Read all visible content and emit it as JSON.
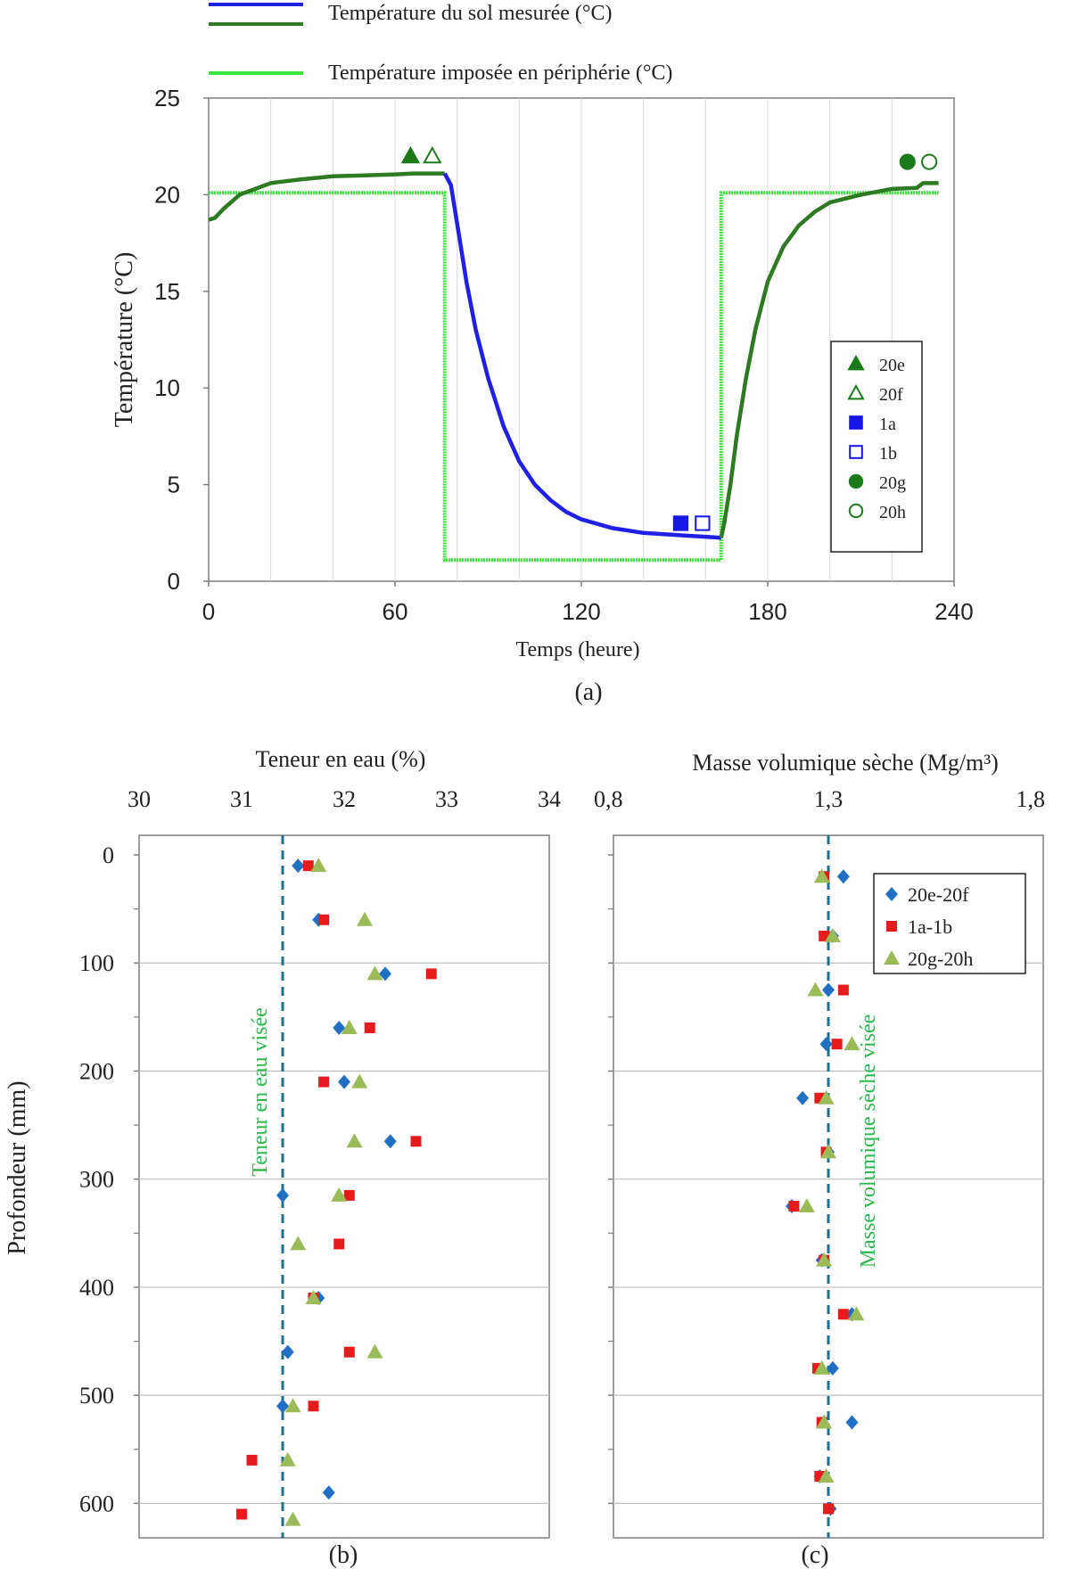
{
  "colors": {
    "measured_blue": "#1f1fe6",
    "measured_green": "#2e7a23",
    "imposed": "#39e639",
    "series_20ef": "#1f6fc4",
    "series_1ab": "#e61c1c",
    "series_20gh": "#9bbb59",
    "target_line": "#1f6f8f",
    "target_text": "#2db84b",
    "marker_green": "#1a7a1a",
    "marker_blue": "#1616e6"
  },
  "chart_data": [
    {
      "id": "a",
      "type": "line",
      "caption": "(a)",
      "xlabel": "Temps (heure)",
      "ylabel": "Température (°C)",
      "xlim": [
        0,
        240
      ],
      "ylim": [
        0,
        25
      ],
      "xticks": [
        0,
        60,
        120,
        180,
        240
      ],
      "yticks": [
        0,
        5,
        10,
        15,
        20,
        25
      ],
      "vgrid": [
        20,
        40,
        60,
        80,
        100,
        120,
        140,
        160,
        180,
        200,
        220
      ],
      "legend_top": [
        {
          "label": "Température du sol mesurée (°C)"
        },
        {
          "label": "Température imposée en périphérie (°C)"
        }
      ],
      "measured_warm1": {
        "x": [
          0,
          2,
          5,
          10,
          15,
          20,
          25,
          30,
          40,
          50,
          60,
          66,
          70,
          76
        ],
        "y": [
          18.7,
          18.8,
          19.3,
          20.0,
          20.3,
          20.6,
          20.7,
          20.8,
          20.95,
          21.0,
          21.05,
          21.1,
          21.1,
          21.1
        ]
      },
      "measured_cold": {
        "x": [
          76,
          78,
          80,
          83,
          86,
          90,
          95,
          100,
          105,
          110,
          115,
          120,
          130,
          140,
          150,
          160,
          165
        ],
        "y": [
          21.1,
          20.5,
          18.5,
          15.5,
          13.0,
          10.5,
          8.0,
          6.2,
          5.0,
          4.2,
          3.6,
          3.2,
          2.75,
          2.5,
          2.4,
          2.3,
          2.25
        ]
      },
      "measured_warm2": {
        "x": [
          165,
          166,
          168,
          170,
          173,
          176,
          180,
          185,
          190,
          195,
          200,
          210,
          220,
          228,
          230,
          235
        ],
        "y": [
          2.25,
          3.0,
          5.0,
          7.5,
          10.5,
          13.0,
          15.5,
          17.3,
          18.4,
          19.1,
          19.6,
          20.0,
          20.3,
          20.35,
          20.6,
          20.6
        ]
      },
      "imposed": {
        "x": [
          0,
          76,
          76,
          165,
          165,
          235
        ],
        "y": [
          20.1,
          20.1,
          1.1,
          1.1,
          20.1,
          20.1
        ]
      },
      "markers": [
        {
          "label": "20e",
          "shape": "triangle",
          "filled": true,
          "color": "green",
          "x": 65,
          "y": 22.0
        },
        {
          "label": "20f",
          "shape": "triangle",
          "filled": false,
          "color": "green",
          "x": 72,
          "y": 22.0
        },
        {
          "label": "1a",
          "shape": "square",
          "filled": true,
          "color": "blue",
          "x": 152,
          "y": 3.0
        },
        {
          "label": "1b",
          "shape": "square",
          "filled": false,
          "color": "blue",
          "x": 159,
          "y": 3.0
        },
        {
          "label": "20g",
          "shape": "circle",
          "filled": true,
          "color": "green",
          "x": 225,
          "y": 21.7
        },
        {
          "label": "20h",
          "shape": "circle",
          "filled": false,
          "color": "green",
          "x": 232,
          "y": 21.7
        }
      ]
    },
    {
      "id": "b",
      "type": "scatter",
      "caption": "(b)",
      "xlabel": "Teneur en eau (%)",
      "ylabel": "Profondeur (mm)",
      "xlim": [
        30,
        34
      ],
      "ylim": [
        0,
        650
      ],
      "xtick_labels": [
        "30",
        "31",
        "32",
        "33",
        "34"
      ],
      "xticks": [
        30,
        31,
        32,
        33,
        34
      ],
      "yticks": [
        0,
        100,
        200,
        300,
        400,
        500,
        600
      ],
      "target": {
        "value": 31.4,
        "label": "Teneur en eau visée"
      },
      "series": [
        {
          "name": "20e-20f",
          "shape": "diamond",
          "points": [
            [
              31.55,
              10
            ],
            [
              31.75,
              60
            ],
            [
              32.4,
              110
            ],
            [
              31.95,
              160
            ],
            [
              32.0,
              210
            ],
            [
              32.45,
              265
            ],
            [
              31.4,
              315
            ],
            [
              31.75,
              410
            ],
            [
              31.45,
              460
            ],
            [
              31.4,
              510
            ],
            [
              31.85,
              590
            ]
          ]
        },
        {
          "name": "1a-1b",
          "shape": "square",
          "points": [
            [
              31.65,
              10
            ],
            [
              31.8,
              60
            ],
            [
              32.85,
              110
            ],
            [
              32.25,
              160
            ],
            [
              31.8,
              210
            ],
            [
              32.7,
              265
            ],
            [
              32.05,
              315
            ],
            [
              31.95,
              360
            ],
            [
              31.7,
              410
            ],
            [
              32.05,
              460
            ],
            [
              31.7,
              510
            ],
            [
              31.1,
              560
            ],
            [
              31.0,
              610
            ]
          ]
        },
        {
          "name": "20g-20h",
          "shape": "triangle",
          "points": [
            [
              31.75,
              10
            ],
            [
              32.2,
              60
            ],
            [
              32.3,
              110
            ],
            [
              32.05,
              160
            ],
            [
              32.15,
              210
            ],
            [
              32.1,
              265
            ],
            [
              31.95,
              315
            ],
            [
              31.55,
              360
            ],
            [
              31.7,
              410
            ],
            [
              32.3,
              460
            ],
            [
              31.5,
              510
            ],
            [
              31.45,
              560
            ],
            [
              31.5,
              615
            ]
          ]
        }
      ]
    },
    {
      "id": "c",
      "type": "scatter",
      "caption": "(c)",
      "xlabel": "Masse volumique sèche (Mg/m³)",
      "xlim": [
        0.8,
        1.8
      ],
      "xtick_labels": [
        "0,8",
        "1,3",
        "1,8"
      ],
      "xticks": [
        0.8,
        1.3,
        1.8
      ],
      "ylim": [
        0,
        650
      ],
      "yticks": [
        0,
        100,
        200,
        300,
        400,
        500,
        600
      ],
      "target": {
        "value": 1.3,
        "label": "Masse volumique sèche visée"
      },
      "legend": [
        "20e-20f",
        "1a-1b",
        "20g-20h"
      ],
      "series": [
        {
          "name": "20e-20f",
          "shape": "diamond",
          "points": [
            [
              1.335,
              20
            ],
            [
              1.31,
              75
            ],
            [
              1.3,
              125
            ],
            [
              1.295,
              175
            ],
            [
              1.24,
              225
            ],
            [
              1.3,
              275
            ],
            [
              1.215,
              325
            ],
            [
              1.285,
              375
            ],
            [
              1.355,
              425
            ],
            [
              1.31,
              475
            ],
            [
              1.355,
              525
            ],
            [
              1.28,
              575
            ],
            [
              1.305,
              605
            ]
          ]
        },
        {
          "name": "1a-1b",
          "shape": "square",
          "points": [
            [
              1.29,
              20
            ],
            [
              1.29,
              75
            ],
            [
              1.335,
              125
            ],
            [
              1.32,
              175
            ],
            [
              1.28,
              225
            ],
            [
              1.295,
              275
            ],
            [
              1.22,
              325
            ],
            [
              1.29,
              375
            ],
            [
              1.335,
              425
            ],
            [
              1.275,
              475
            ],
            [
              1.285,
              525
            ],
            [
              1.28,
              575
            ],
            [
              1.3,
              605
            ]
          ]
        },
        {
          "name": "20g-20h",
          "shape": "triangle",
          "points": [
            [
              1.285,
              20
            ],
            [
              1.31,
              75
            ],
            [
              1.27,
              125
            ],
            [
              1.355,
              175
            ],
            [
              1.295,
              225
            ],
            [
              1.3,
              275
            ],
            [
              1.25,
              325
            ],
            [
              1.29,
              375
            ],
            [
              1.365,
              425
            ],
            [
              1.285,
              475
            ],
            [
              1.29,
              525
            ],
            [
              1.295,
              575
            ]
          ]
        }
      ]
    }
  ]
}
